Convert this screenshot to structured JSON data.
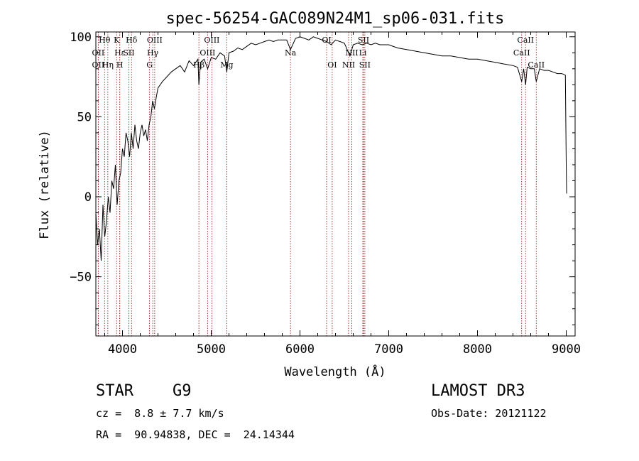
{
  "chart_data": {
    "type": "line",
    "title": "spec-56254-GAC089N24M1_sp06-031.fits",
    "xlabel": "Wavelength (Å)",
    "ylabel": "Flux (relative)",
    "xlim": [
      3700,
      9100
    ],
    "ylim": [
      -87,
      103
    ],
    "xticks": [
      4000,
      5000,
      6000,
      7000,
      8000,
      9000
    ],
    "yticks": [
      -50,
      0,
      50,
      100
    ],
    "line_color": "#000000",
    "marker_color": "#8b0000",
    "spectrum": {
      "name": "flux",
      "x": [
        3700,
        3720,
        3740,
        3760,
        3780,
        3800,
        3820,
        3840,
        3860,
        3880,
        3900,
        3920,
        3940,
        3960,
        3980,
        4000,
        4020,
        4040,
        4060,
        4080,
        4100,
        4120,
        4140,
        4160,
        4180,
        4200,
        4220,
        4240,
        4260,
        4280,
        4300,
        4320,
        4340,
        4360,
        4380,
        4400,
        4450,
        4500,
        4550,
        4600,
        4650,
        4700,
        4750,
        4800,
        4850,
        4861,
        4880,
        4920,
        4960,
        5000,
        5050,
        5100,
        5150,
        5175,
        5200,
        5250,
        5300,
        5350,
        5400,
        5450,
        5500,
        5550,
        5600,
        5650,
        5700,
        5750,
        5800,
        5850,
        5893,
        5950,
        6000,
        6050,
        6100,
        6150,
        6200,
        6250,
        6300,
        6350,
        6400,
        6450,
        6500,
        6563,
        6600,
        6650,
        6700,
        6750,
        6800,
        6850,
        6900,
        6950,
        7000,
        7100,
        7200,
        7300,
        7400,
        7500,
        7600,
        7700,
        7800,
        7900,
        8000,
        8100,
        8200,
        8300,
        8400,
        8450,
        8498,
        8520,
        8542,
        8560,
        8600,
        8640,
        8662,
        8700,
        8750,
        8800,
        8850,
        8900,
        8950,
        8990,
        9000,
        9005
      ],
      "y": [
        -10,
        -30,
        -20,
        -40,
        -5,
        -25,
        -15,
        0,
        -10,
        10,
        5,
        20,
        -5,
        10,
        15,
        30,
        25,
        40,
        35,
        25,
        40,
        30,
        45,
        35,
        30,
        40,
        45,
        38,
        42,
        35,
        45,
        50,
        60,
        55,
        62,
        68,
        72,
        75,
        78,
        80,
        82,
        78,
        85,
        82,
        86,
        70,
        84,
        86,
        80,
        87,
        86,
        90,
        88,
        78,
        90,
        91,
        93,
        92,
        94,
        96,
        95,
        96,
        97,
        98,
        97,
        98,
        98,
        98,
        92,
        99,
        100,
        99,
        98,
        100,
        99,
        98,
        97,
        95,
        98,
        97,
        96,
        88,
        95,
        96,
        95,
        96,
        95,
        96,
        95,
        95,
        95,
        93,
        92,
        91,
        90,
        89,
        88,
        88,
        87,
        86,
        86,
        85,
        84,
        83,
        82,
        81,
        72,
        80,
        70,
        81,
        80,
        80,
        72,
        80,
        79,
        79,
        78,
        77,
        77,
        76,
        20,
        2
      ]
    },
    "line_markers": [
      {
        "label": "Hθ",
        "wavelength": 3798,
        "row": 0
      },
      {
        "label": "K",
        "wavelength": 3934,
        "row": 0
      },
      {
        "label": "Hδ",
        "wavelength": 4102,
        "row": 0
      },
      {
        "label": "OII",
        "wavelength": 3727,
        "row": 1
      },
      {
        "label": "Hε",
        "wavelength": 3970,
        "row": 1
      },
      {
        "label": "SII",
        "wavelength": 4072,
        "row": 1
      },
      {
        "label": "OII",
        "wavelength": 3727,
        "row": 2
      },
      {
        "label": "Hη",
        "wavelength": 3835,
        "row": 2
      },
      {
        "label": "H",
        "wavelength": 3969,
        "row": 2
      },
      {
        "label": "OIII",
        "wavelength": 4363,
        "row": 0
      },
      {
        "label": "Hγ",
        "wavelength": 4341,
        "row": 1
      },
      {
        "label": "G",
        "wavelength": 4305,
        "row": 2
      },
      {
        "label": "OIII",
        "wavelength": 5007,
        "row": 0
      },
      {
        "label": "OIII",
        "wavelength": 4959,
        "row": 1
      },
      {
        "label": "Hβ",
        "wavelength": 4861,
        "row": 2
      },
      {
        "label": "Mg",
        "wavelength": 5175,
        "row": 2
      },
      {
        "label": "Na",
        "wavelength": 5893,
        "row": 1
      },
      {
        "label": "OI",
        "wavelength": 6300,
        "row": 0
      },
      {
        "label": "OI",
        "wavelength": 6363,
        "row": 2
      },
      {
        "label": "SII",
        "wavelength": 6716,
        "row": 0
      },
      {
        "label": "NII",
        "wavelength": 6584,
        "row": 1
      },
      {
        "label": "Li",
        "wavelength": 6708,
        "row": 1
      },
      {
        "label": "NII",
        "wavelength": 6548,
        "row": 2
      },
      {
        "label": "SII",
        "wavelength": 6731,
        "row": 2
      },
      {
        "label": "CaII",
        "wavelength": 8542,
        "row": 0
      },
      {
        "label": "CaII",
        "wavelength": 8498,
        "row": 1
      },
      {
        "label": "CaII",
        "wavelength": 8662,
        "row": 2
      }
    ]
  },
  "info": {
    "class": "STAR",
    "subclass": "G9",
    "survey": "LAMOST DR3",
    "cz": "cz =  8.8 ± 7.7 km/s",
    "obs_date": "Obs-Date: 20121122",
    "coords": "RA =  90.94838, DEC =  24.14344"
  }
}
